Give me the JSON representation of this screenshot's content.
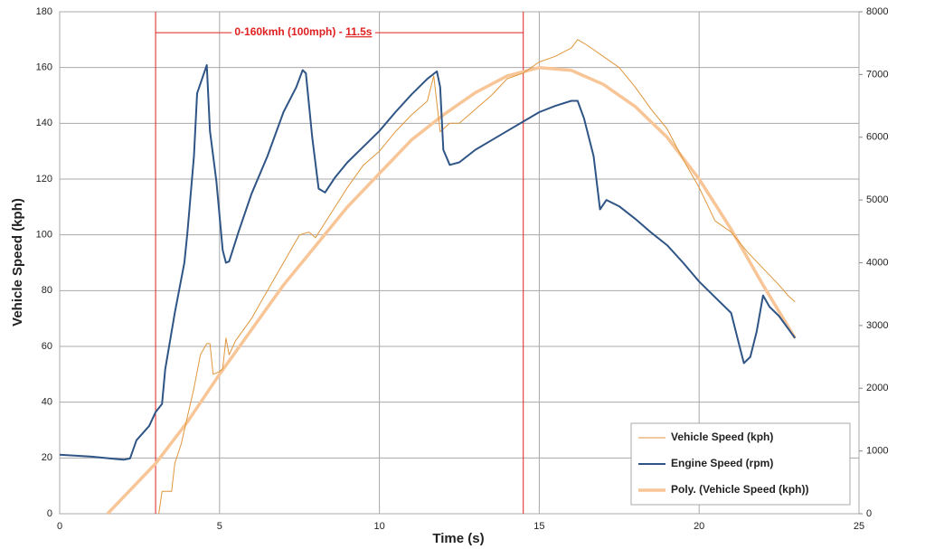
{
  "chart_data": {
    "type": "line",
    "xlabel": "Time (s)",
    "ylabel": "Vehicle Speed (kph)",
    "xlim": [
      0,
      25
    ],
    "xticks": [
      0,
      5,
      10,
      15,
      20,
      25
    ],
    "ylim": [
      0,
      180
    ],
    "yticks": [
      0,
      20,
      40,
      60,
      80,
      100,
      120,
      140,
      160,
      180
    ],
    "y2lim": [
      0,
      8000
    ],
    "y2ticks": [
      0,
      1000,
      2000,
      3000,
      4000,
      5000,
      6000,
      7000,
      8000
    ],
    "grid": true,
    "legend": "lower right",
    "annotation": {
      "text": "0-160kmh (100mph) - ",
      "highlight": "11.5s",
      "x_start": 3,
      "x_end": 14.5,
      "y": 172.5,
      "color": "#e02020"
    },
    "series": [
      {
        "name": "Vehicle Speed (kph)",
        "color": "#e0963c",
        "x": [
          3.1,
          3.2,
          3.5,
          3.6,
          3.8,
          4.0,
          4.2,
          4.4,
          4.6,
          4.7,
          4.8,
          5.0,
          5.1,
          5.2,
          5.3,
          5.5,
          6.0,
          6.5,
          7.0,
          7.5,
          7.8,
          8.0,
          8.5,
          9.0,
          9.5,
          10.0,
          10.5,
          11.0,
          11.5,
          11.7,
          11.9,
          12.2,
          12.5,
          13.0,
          13.5,
          14.0,
          14.5,
          15.0,
          15.5,
          16.0,
          16.2,
          16.5,
          17.0,
          17.5,
          18.0,
          18.5,
          19.0,
          19.5,
          20.0,
          20.5,
          21.0,
          21.5,
          22.0,
          22.5,
          22.8,
          23.0
        ],
        "values": [
          0,
          8,
          8,
          18,
          25,
          35,
          45,
          57,
          61,
          61,
          50,
          51,
          52,
          63,
          57,
          62,
          70,
          80,
          90,
          100,
          101,
          99,
          108,
          117,
          125,
          130,
          137,
          143,
          148,
          157,
          137,
          140,
          140,
          145,
          150,
          156,
          158,
          162,
          164,
          167,
          170,
          168,
          164,
          160,
          153,
          145,
          138,
          127,
          117,
          105,
          101,
          94,
          88,
          82,
          78,
          76
        ]
      },
      {
        "name": "Engine Speed (rpm)",
        "color": "#2f5586",
        "axis": "y2",
        "x": [
          0,
          1.0,
          2.0,
          2.2,
          2.4,
          2.8,
          3.0,
          3.2,
          3.3,
          3.6,
          3.9,
          4.0,
          4.2,
          4.3,
          4.5,
          4.6,
          4.7,
          4.9,
          5.1,
          5.2,
          5.3,
          5.6,
          6.0,
          6.5,
          7.0,
          7.4,
          7.6,
          7.7,
          7.9,
          8.1,
          8.3,
          8.6,
          9.0,
          9.5,
          10.0,
          10.5,
          11.0,
          11.5,
          11.8,
          11.9,
          12.0,
          12.2,
          12.5,
          13.0,
          13.5,
          14.0,
          14.5,
          15.0,
          15.5,
          16.0,
          16.2,
          16.4,
          16.7,
          16.9,
          17.1,
          17.5,
          18.0,
          18.5,
          19.0,
          19.5,
          20.0,
          20.5,
          21.0,
          21.2,
          21.4,
          21.6,
          21.8,
          22.0,
          22.2,
          22.5,
          23.0
        ],
        "values": [
          940,
          910,
          860,
          880,
          1170,
          1400,
          1620,
          1750,
          2300,
          3200,
          4000,
          4500,
          5700,
          6700,
          7000,
          7150,
          6100,
          5300,
          4200,
          4000,
          4020,
          4500,
          5100,
          5700,
          6400,
          6800,
          7070,
          7020,
          6000,
          5180,
          5120,
          5350,
          5600,
          5850,
          6100,
          6400,
          6680,
          6930,
          7050,
          6800,
          5800,
          5560,
          5600,
          5800,
          5950,
          6100,
          6250,
          6400,
          6500,
          6580,
          6580,
          6300,
          5700,
          4850,
          5000,
          4900,
          4700,
          4480,
          4280,
          4000,
          3700,
          3450,
          3200,
          2800,
          2400,
          2500,
          2900,
          3480,
          3300,
          3150,
          2800
        ]
      },
      {
        "name": "Poly. (Vehicle Speed (kph))",
        "color": "#f8c597",
        "x": [
          1.5,
          3,
          4,
          5,
          6,
          7,
          8,
          9,
          10,
          11,
          12,
          13,
          14,
          15,
          16,
          17,
          18,
          19,
          20,
          21,
          22,
          23
        ],
        "values": [
          0,
          18,
          33,
          50,
          66,
          82,
          96,
          110,
          122,
          134,
          143,
          151,
          157,
          160,
          159,
          154,
          146,
          135,
          120,
          102,
          82,
          63
        ]
      }
    ]
  }
}
